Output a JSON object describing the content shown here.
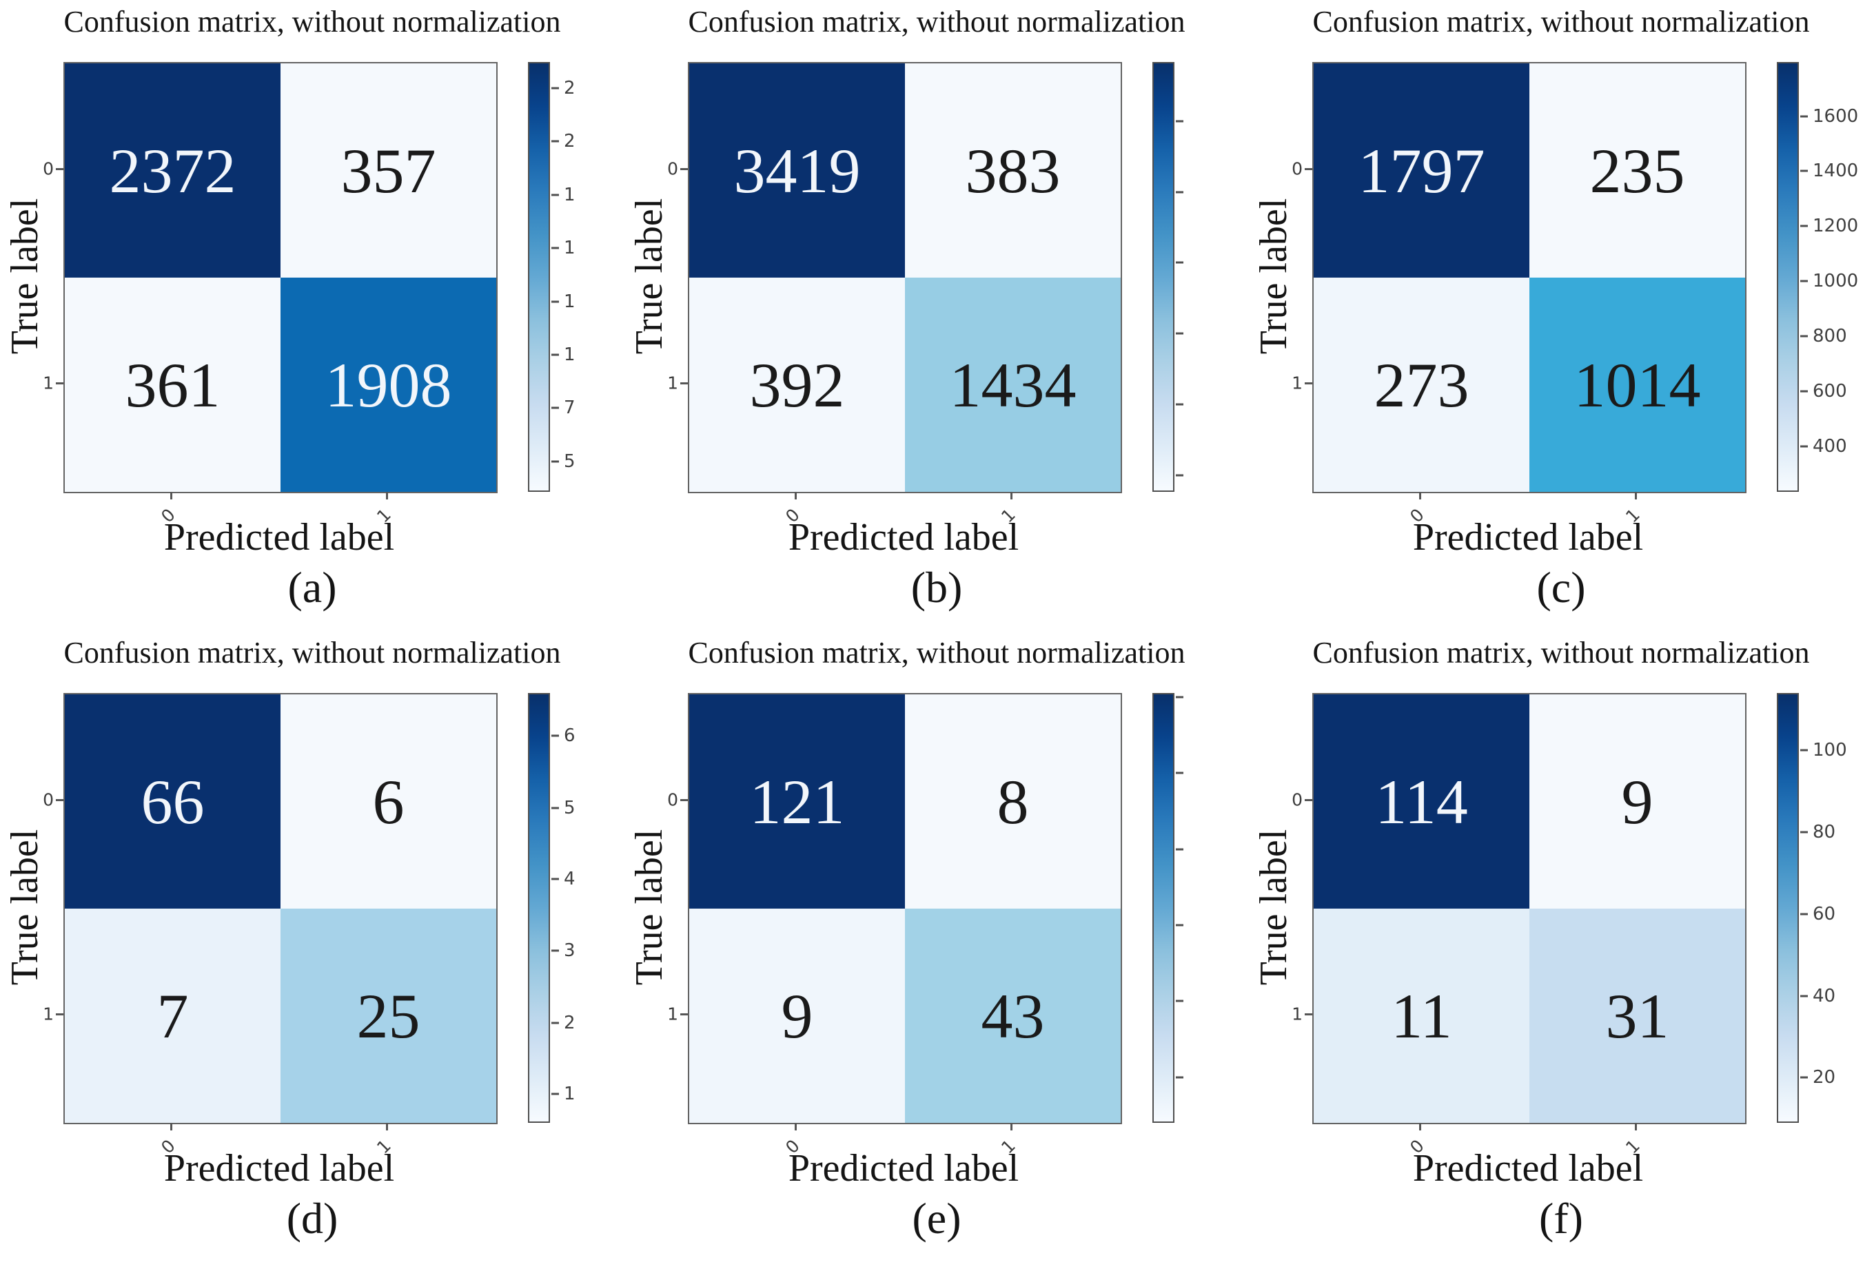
{
  "shared": {
    "title": "Confusion matrix, without normalization",
    "xlabel": "Predicted label",
    "ylabel": "True label",
    "xticks": [
      "0",
      "1"
    ],
    "yticks": [
      "0",
      "1"
    ]
  },
  "colors": {
    "colorbar_gradient": [
      "#08306b",
      "#08438c",
      "#1561a9",
      "#2b7bbc",
      "#4393c7",
      "#63a8d3",
      "#8bc0dd",
      "#abd0e6",
      "#c8dcf0",
      "#dfecf7",
      "#f7fbff"
    ],
    "cell_darkest": "#09306e",
    "axis_border": "#636363",
    "tick_color": "#4f4f4f"
  },
  "panels": [
    {
      "caption": "(a)",
      "cells": [
        {
          "value": "2372",
          "bg": "#09306e",
          "fg": "#f2f6fb"
        },
        {
          "value": "357",
          "bg": "#f5f9fd",
          "fg": "#1a1a1a"
        },
        {
          "value": "361",
          "bg": "#f5f9fd",
          "fg": "#1a1a1a"
        },
        {
          "value": "1908",
          "bg": "#0c6ab2",
          "fg": "#f2f6fb"
        }
      ],
      "colorbar_ticks": [
        {
          "pos": 6.1,
          "label": "2"
        },
        {
          "pos": 18.5,
          "label": "2"
        },
        {
          "pos": 30.9,
          "label": "1"
        },
        {
          "pos": 43.3,
          "label": "1"
        },
        {
          "pos": 55.7,
          "label": "1"
        },
        {
          "pos": 68.1,
          "label": "1"
        },
        {
          "pos": 80.5,
          "label": "7"
        },
        {
          "pos": 92.9,
          "label": "5"
        }
      ]
    },
    {
      "caption": "(b)",
      "cells": [
        {
          "value": "3419",
          "bg": "#09306e",
          "fg": "#f2f6fb"
        },
        {
          "value": "383",
          "bg": "#f5f9fd",
          "fg": "#1a1a1a"
        },
        {
          "value": "392",
          "bg": "#f3f8fd",
          "fg": "#1a1a1a"
        },
        {
          "value": "1434",
          "bg": "#97cde4",
          "fg": "#1a1a1a"
        }
      ],
      "colorbar_ticks": [
        {
          "pos": 13.8,
          "label": ""
        },
        {
          "pos": 30.3,
          "label": ""
        },
        {
          "pos": 46.7,
          "label": ""
        },
        {
          "pos": 63.2,
          "label": ""
        },
        {
          "pos": 79.7,
          "label": ""
        },
        {
          "pos": 96.1,
          "label": ""
        }
      ]
    },
    {
      "caption": "(c)",
      "cells": [
        {
          "value": "1797",
          "bg": "#09306e",
          "fg": "#f2f6fb"
        },
        {
          "value": "235",
          "bg": "#f5f9fd",
          "fg": "#1a1a1a"
        },
        {
          "value": "273",
          "bg": "#f0f6fc",
          "fg": "#1a1a1a"
        },
        {
          "value": "1014",
          "bg": "#38aad9",
          "fg": "#1a1a1a"
        }
      ],
      "colorbar_ticks": [
        {
          "pos": 12.6,
          "label": "1600"
        },
        {
          "pos": 25.4,
          "label": "1400"
        },
        {
          "pos": 38.2,
          "label": "1200"
        },
        {
          "pos": 51.0,
          "label": "1000"
        },
        {
          "pos": 63.8,
          "label": "800"
        },
        {
          "pos": 76.6,
          "label": "600"
        },
        {
          "pos": 89.4,
          "label": "400"
        }
      ]
    },
    {
      "caption": "(d)",
      "cells": [
        {
          "value": "66",
          "bg": "#09306e",
          "fg": "#f2f6fb"
        },
        {
          "value": "6",
          "bg": "#f5f9fd",
          "fg": "#1a1a1a"
        },
        {
          "value": "7",
          "bg": "#e9f2fa",
          "fg": "#1a1a1a"
        },
        {
          "value": "25",
          "bg": "#a6d2e9",
          "fg": "#1a1a1a"
        }
      ],
      "colorbar_ticks": [
        {
          "pos": 10.0,
          "label": "6"
        },
        {
          "pos": 26.7,
          "label": "5"
        },
        {
          "pos": 43.3,
          "label": "4"
        },
        {
          "pos": 60.0,
          "label": "3"
        },
        {
          "pos": 76.7,
          "label": "2"
        },
        {
          "pos": 93.3,
          "label": "1"
        }
      ]
    },
    {
      "caption": "(e)",
      "cells": [
        {
          "value": "121",
          "bg": "#09306e",
          "fg": "#f2f6fb"
        },
        {
          "value": "8",
          "bg": "#f5f9fd",
          "fg": "#1a1a1a"
        },
        {
          "value": "9",
          "bg": "#f0f6fc",
          "fg": "#1a1a1a"
        },
        {
          "value": "43",
          "bg": "#a2d2e7",
          "fg": "#1a1a1a"
        }
      ],
      "colorbar_ticks": [
        {
          "pos": 0.9,
          "label": ""
        },
        {
          "pos": 18.6,
          "label": ""
        },
        {
          "pos": 36.3,
          "label": ""
        },
        {
          "pos": 54.0,
          "label": ""
        },
        {
          "pos": 71.7,
          "label": ""
        },
        {
          "pos": 89.4,
          "label": ""
        }
      ]
    },
    {
      "caption": "(f)",
      "cells": [
        {
          "value": "114",
          "bg": "#09306e",
          "fg": "#f2f6fb"
        },
        {
          "value": "9",
          "bg": "#f5f9fd",
          "fg": "#1a1a1a"
        },
        {
          "value": "11",
          "bg": "#e2eef8",
          "fg": "#1a1a1a"
        },
        {
          "value": "31",
          "bg": "#c7ddf0",
          "fg": "#1a1a1a"
        }
      ],
      "colorbar_ticks": [
        {
          "pos": 13.3,
          "label": "100"
        },
        {
          "pos": 32.4,
          "label": "80"
        },
        {
          "pos": 51.4,
          "label": "60"
        },
        {
          "pos": 70.5,
          "label": "40"
        },
        {
          "pos": 89.5,
          "label": "20"
        }
      ]
    }
  ],
  "chart_data": [
    {
      "type": "heatmap",
      "panel": "(a)",
      "title": "Confusion matrix, without normalization",
      "xlabel": "Predicted label",
      "ylabel": "True label",
      "x_categories": [
        "0",
        "1"
      ],
      "y_categories": [
        "0",
        "1"
      ],
      "matrix": [
        [
          2372,
          357
        ],
        [
          361,
          1908
        ]
      ],
      "colormap": "Blues",
      "colorbar_visible_tick_labels": [
        "2",
        "2",
        "1",
        "1",
        "1",
        "1",
        "7",
        "5"
      ],
      "legend_position": "right-colorbar",
      "grid": false
    },
    {
      "type": "heatmap",
      "panel": "(b)",
      "title": "Confusion matrix, without normalization",
      "xlabel": "Predicted label",
      "ylabel": "True label",
      "x_categories": [
        "0",
        "1"
      ],
      "y_categories": [
        "0",
        "1"
      ],
      "matrix": [
        [
          3419,
          383
        ],
        [
          392,
          1434
        ]
      ],
      "colormap": "Blues",
      "colorbar_visible_tick_labels": [],
      "legend_position": "right-colorbar",
      "grid": false
    },
    {
      "type": "heatmap",
      "panel": "(c)",
      "title": "Confusion matrix, without normalization",
      "xlabel": "Predicted label",
      "ylabel": "True label",
      "x_categories": [
        "0",
        "1"
      ],
      "y_categories": [
        "0",
        "1"
      ],
      "matrix": [
        [
          1797,
          235
        ],
        [
          273,
          1014
        ]
      ],
      "colormap": "Blues",
      "colorbar_visible_tick_labels": [
        "1600",
        "1400",
        "1200",
        "1000",
        "800",
        "600",
        "400"
      ],
      "legend_position": "right-colorbar",
      "grid": false
    },
    {
      "type": "heatmap",
      "panel": "(d)",
      "title": "Confusion matrix, without normalization",
      "xlabel": "Predicted label",
      "ylabel": "True label",
      "x_categories": [
        "0",
        "1"
      ],
      "y_categories": [
        "0",
        "1"
      ],
      "matrix": [
        [
          66,
          6
        ],
        [
          7,
          25
        ]
      ],
      "colormap": "Blues",
      "colorbar_visible_tick_labels": [
        "6",
        "5",
        "4",
        "3",
        "2",
        "1"
      ],
      "legend_position": "right-colorbar",
      "grid": false
    },
    {
      "type": "heatmap",
      "panel": "(e)",
      "title": "Confusion matrix, without normalization",
      "xlabel": "Predicted label",
      "ylabel": "True label",
      "x_categories": [
        "0",
        "1"
      ],
      "y_categories": [
        "0",
        "1"
      ],
      "matrix": [
        [
          121,
          8
        ],
        [
          9,
          43
        ]
      ],
      "colormap": "Blues",
      "colorbar_visible_tick_labels": [],
      "legend_position": "right-colorbar",
      "grid": false
    },
    {
      "type": "heatmap",
      "panel": "(f)",
      "title": "Confusion matrix, without normalization",
      "xlabel": "Predicted label",
      "ylabel": "True label",
      "x_categories": [
        "0",
        "1"
      ],
      "y_categories": [
        "0",
        "1"
      ],
      "matrix": [
        [
          114,
          9
        ],
        [
          11,
          31
        ]
      ],
      "colormap": "Blues",
      "colorbar_visible_tick_labels": [
        "100",
        "80",
        "60",
        "40",
        "20"
      ],
      "legend_position": "right-colorbar",
      "grid": false
    }
  ]
}
